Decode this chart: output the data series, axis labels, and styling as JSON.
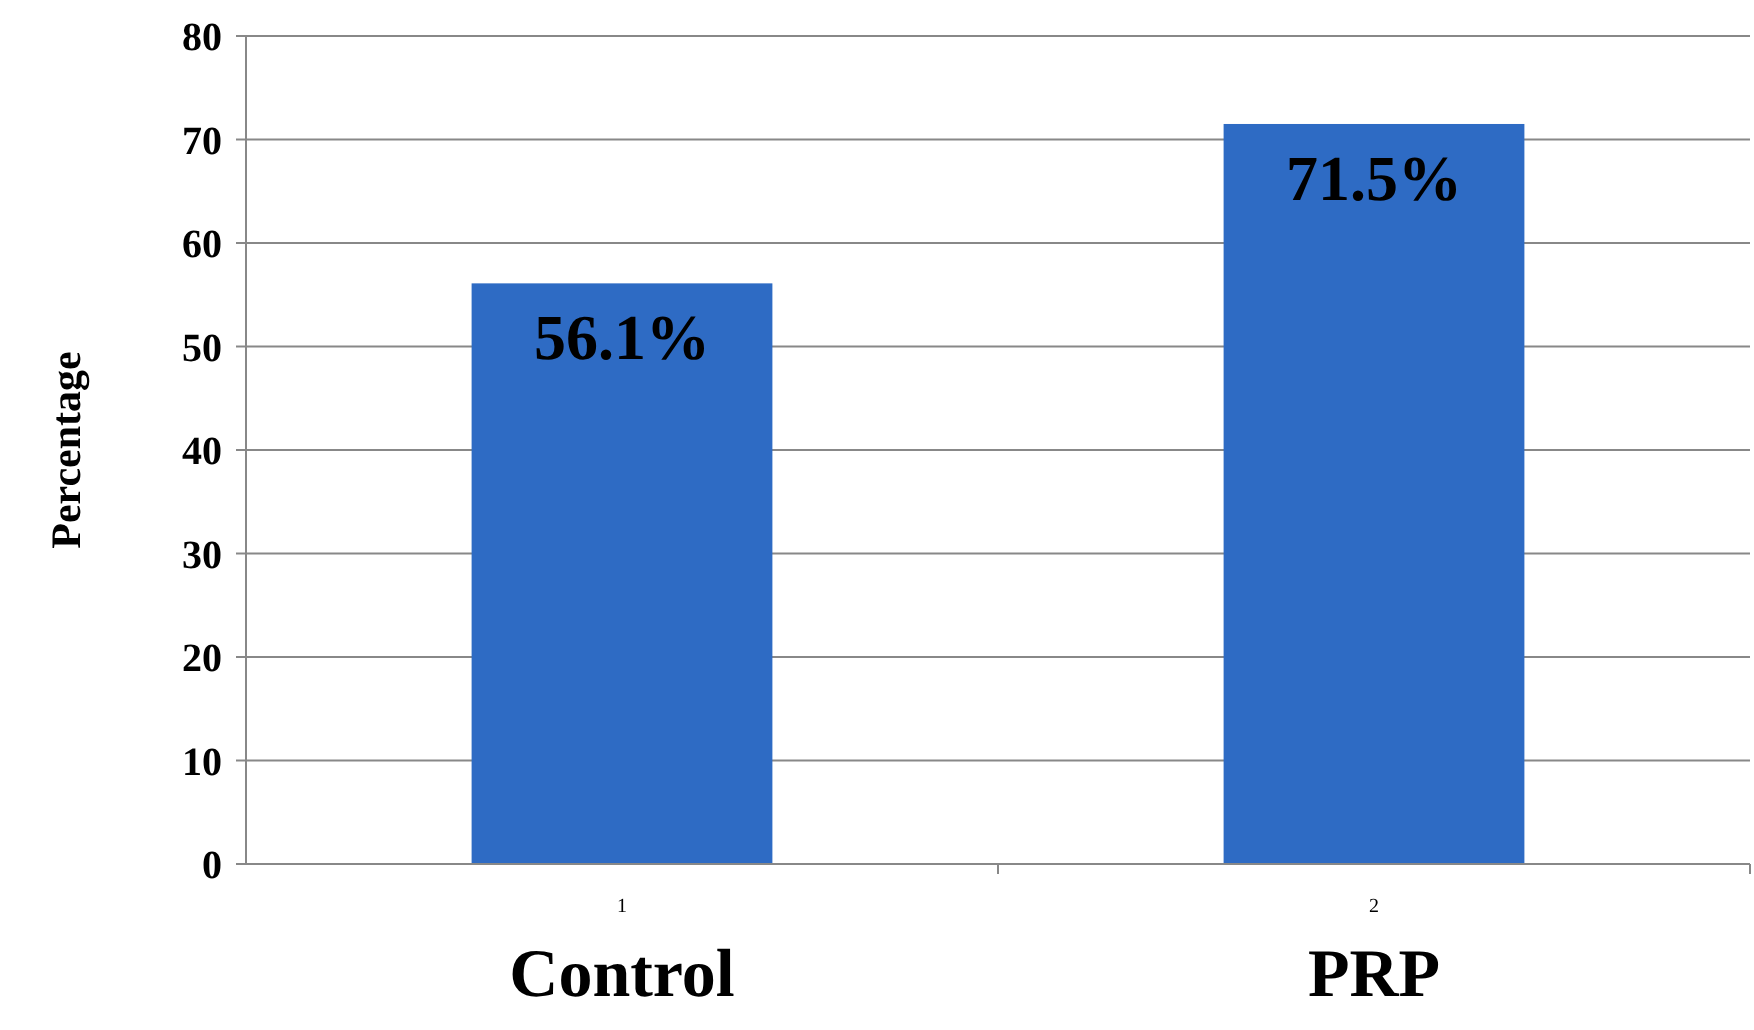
{
  "chart_data": {
    "type": "bar",
    "ylabel": "Percentage",
    "categories": [
      "1",
      "2"
    ],
    "values": [
      56.1,
      71.5
    ],
    "value_labels": [
      "56.1%",
      "71.5%"
    ],
    "color": "#2e6bc4",
    "ylim": [
      0,
      80
    ],
    "yticks": [
      0,
      10,
      20,
      30,
      40,
      50,
      60,
      70,
      80
    ],
    "grid": "y",
    "annotations": [
      "Control",
      "PRP"
    ]
  }
}
